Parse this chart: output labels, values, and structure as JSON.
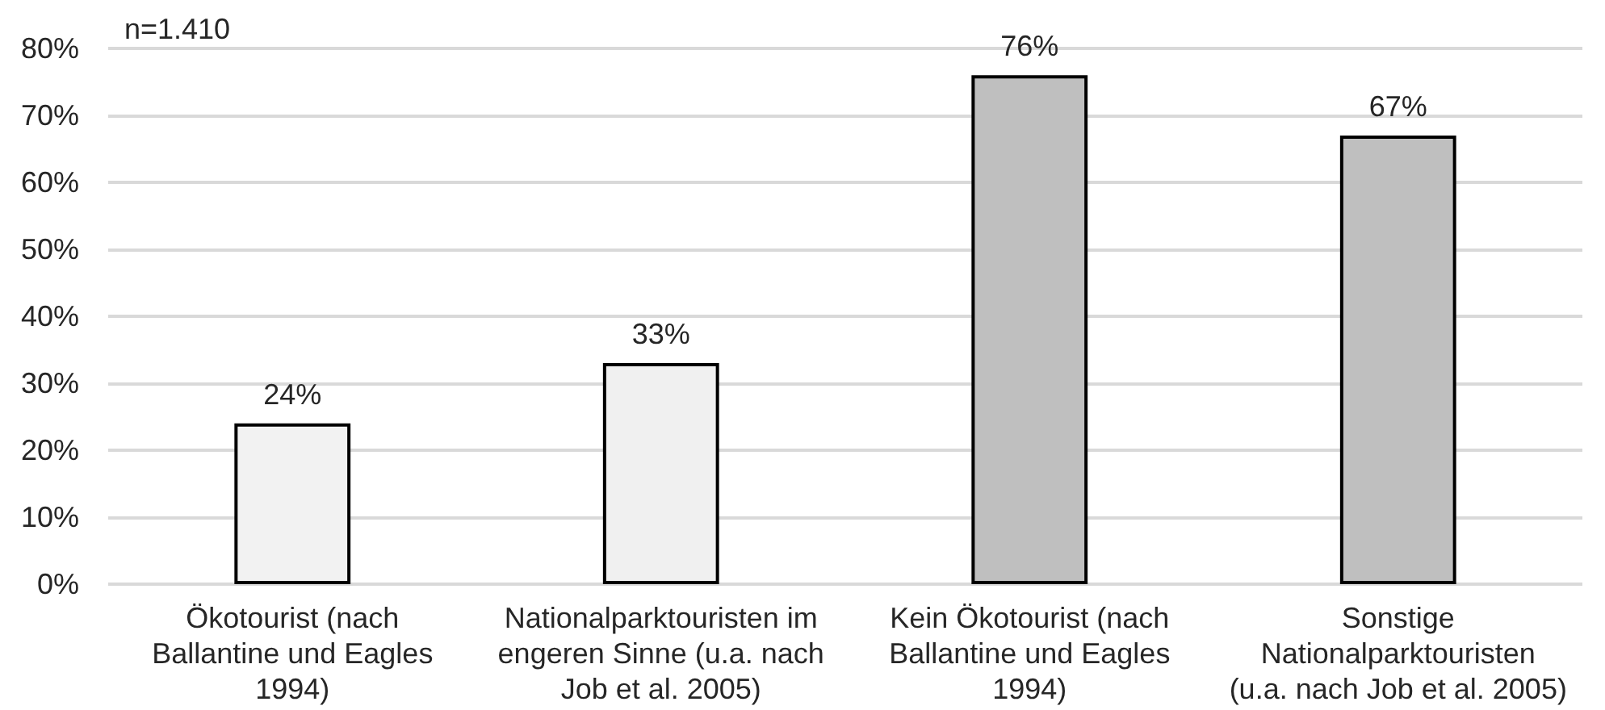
{
  "chart_data": {
    "type": "bar",
    "categories": [
      "Ökotourist (nach\nBallantine und Eagles\n1994)",
      "Nationalparktouristen im\nengeren Sinne (u.a. nach\nJob et al. 2005)",
      "Kein Ökotourist (nach\nBallantine und Eagles\n1994)",
      "Sonstige\nNationalparktouristen\n(u.a. nach Job et al. 2005)"
    ],
    "values": [
      24,
      33,
      76,
      67
    ],
    "value_labels": [
      "24%",
      "33%",
      "76%",
      "67%"
    ],
    "colors": [
      "#f2f2f2",
      "#f0f0f0",
      "#bfbfbf",
      "#bfbfbf"
    ],
    "ylim": [
      0,
      80
    ],
    "yticks": [
      {
        "value": 0,
        "label": "0%"
      },
      {
        "value": 10,
        "label": "10%"
      },
      {
        "value": 20,
        "label": "20%"
      },
      {
        "value": 30,
        "label": "30%"
      },
      {
        "value": 40,
        "label": "40%"
      },
      {
        "value": 50,
        "label": "50%"
      },
      {
        "value": 60,
        "label": "60%"
      },
      {
        "value": 70,
        "label": "70%"
      },
      {
        "value": 80,
        "label": "80%"
      }
    ],
    "grid": "y",
    "annotations": [
      "n=1.410"
    ]
  }
}
